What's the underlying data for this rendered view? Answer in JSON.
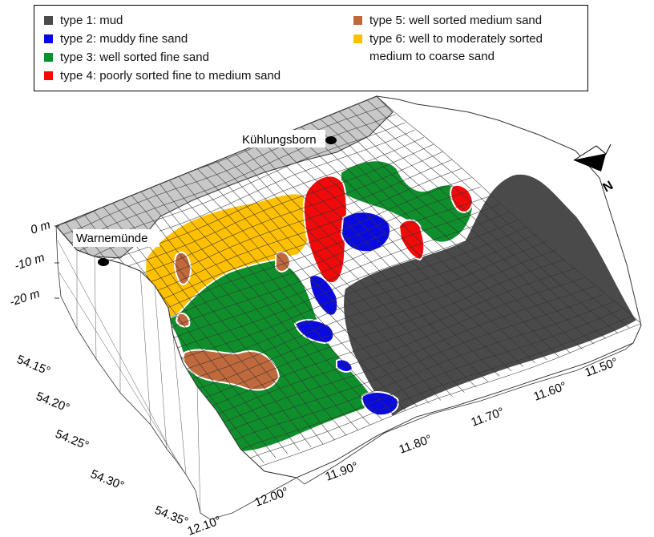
{
  "legend": {
    "items": [
      {
        "label": "type 1: mud",
        "color": "#4a4a4a"
      },
      {
        "label": "type 2: muddy fine sand",
        "color": "#0a0ae0"
      },
      {
        "label": "type 3: well sorted fine sand",
        "color": "#0f8f2c"
      },
      {
        "label": "type 4: poorly sorted fine to medium sand",
        "color": "#f00a0a"
      },
      {
        "label": "type 5: well sorted medium sand",
        "color": "#c0693c"
      },
      {
        "label": "type 6: well to moderately sorted",
        "label2": "medium to coarse sand",
        "color": "#ffc000"
      }
    ]
  },
  "places": {
    "kuehlungsborn": "Kühlungsborn",
    "warnemuende": "Warnemünde"
  },
  "depth_labels": [
    "0 m",
    "-10 m",
    "-20 m"
  ],
  "lat_labels": [
    "54.15°",
    "54.20°",
    "54.25°",
    "54.30°",
    "54.35°"
  ],
  "lon_labels": [
    "12.10°",
    "12.00°",
    "11.90°",
    "11.80°",
    "11.70°",
    "11.60°",
    "11.50°"
  ],
  "north_label": "N",
  "colors": {
    "mesh": "#333333",
    "land": "#c8c8c8",
    "outline": "#ffffff"
  }
}
